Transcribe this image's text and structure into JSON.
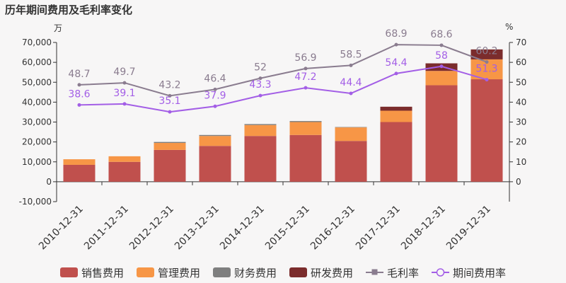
{
  "title": "历年期间费用及毛利率变化",
  "units": {
    "left": "万",
    "right": "%"
  },
  "chart_data": {
    "type": "bar",
    "categories": [
      "2010-12-31",
      "2011-12-31",
      "2012-12-31",
      "2013-12-31",
      "2014-12-31",
      "2015-12-31",
      "2016-12-31",
      "2017-12-31",
      "2018-12-31",
      "2019-12-31"
    ],
    "left_axis": {
      "min": -10000,
      "max": 70000,
      "ticks": [
        "-10,000",
        "0",
        "10,000",
        "20,000",
        "30,000",
        "40,000",
        "50,000",
        "60,000",
        "70,000"
      ]
    },
    "right_axis": {
      "ticks": [
        "0",
        "10",
        "20",
        "30",
        "40",
        "50",
        "60",
        "70"
      ]
    },
    "bar_series": [
      {
        "name": "销售费用",
        "color": "#c0504d",
        "values": [
          8500,
          10000,
          16000,
          18000,
          23000,
          23500,
          20500,
          30000,
          48500,
          51500
        ]
      },
      {
        "name": "管理费用",
        "color": "#f79646",
        "values": [
          2800,
          2800,
          3500,
          5000,
          5500,
          6500,
          6800,
          5700,
          7200,
          10000
        ]
      },
      {
        "name": "财务费用",
        "color": "#7f7f7f",
        "values": [
          0,
          0,
          500,
          500,
          500,
          500,
          200,
          0,
          0,
          0
        ]
      },
      {
        "name": "研发费用",
        "color": "#7b2c2c",
        "values": [
          0,
          0,
          0,
          0,
          0,
          0,
          0,
          2000,
          3800,
          5000
        ]
      }
    ],
    "line_series": [
      {
        "name": "毛利率",
        "color": "#8a7c8f",
        "values": [
          48.7,
          49.7,
          43.2,
          46.4,
          52,
          56.9,
          58.5,
          68.9,
          68.6,
          60.2
        ]
      },
      {
        "name": "期间费用率",
        "color": "#a35ee6",
        "values": [
          38.6,
          39.1,
          35.1,
          37.9,
          43.3,
          47.2,
          44.4,
          54.4,
          58,
          51.3
        ]
      }
    ]
  }
}
